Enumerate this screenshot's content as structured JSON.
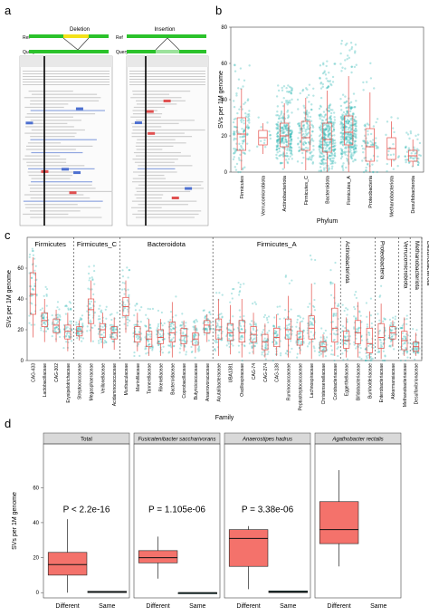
{
  "panel_labels": {
    "a": "a",
    "b": "b",
    "c": "c",
    "d": "d"
  },
  "panel_a": {
    "deletion_title": "Deletion",
    "insertion_title": "Insertion",
    "ref_label": "Ref",
    "query_label": "Query"
  },
  "colors": {
    "box_fill": "#f4726b",
    "box_stroke": "#e4504a",
    "point": "#30b8b4",
    "green_bar": "#2bc22b",
    "yellow_bar": "#f3e21a",
    "strip": "#d9d9d9",
    "dark_box": "#1f5c57"
  },
  "chart_data": [
    {
      "panel": "b",
      "type": "box+strip",
      "xlabel": "Phylum",
      "ylabel": "SVs per 1M genome",
      "ylim": [
        0,
        80
      ],
      "yticks": [
        0,
        20,
        40,
        60,
        80
      ],
      "categories": [
        "Firmicutes",
        "Verrucomicrobiota",
        "Actinobacteriota",
        "Firmicutes_C",
        "Bacteroidota",
        "Firmicutes_A",
        "Proteobacteria",
        "Methanobacteriota",
        "Desulfobacterota"
      ],
      "boxes": [
        {
          "q1": 12,
          "median": 21,
          "q3": 30,
          "lo": 1,
          "hi": 46
        },
        {
          "q1": 15,
          "median": 19,
          "q3": 23,
          "lo": 10,
          "hi": 27
        },
        {
          "q1": 14,
          "median": 20,
          "q3": 27,
          "lo": 2,
          "hi": 38
        },
        {
          "q1": 12,
          "median": 19,
          "q3": 28,
          "lo": 1,
          "hi": 41
        },
        {
          "q1": 11,
          "median": 18,
          "q3": 27,
          "lo": 0,
          "hi": 45
        },
        {
          "q1": 15,
          "median": 22,
          "q3": 31,
          "lo": 0,
          "hi": 53
        },
        {
          "q1": 6,
          "median": 14,
          "q3": 24,
          "lo": 0,
          "hi": 44
        },
        {
          "q1": 7,
          "median": 13,
          "q3": 19,
          "lo": 3,
          "hi": 28
        },
        {
          "q1": 6,
          "median": 9,
          "q3": 12,
          "lo": 3,
          "hi": 18
        }
      ],
      "point_density": [
        120,
        12,
        260,
        140,
        520,
        760,
        70,
        20,
        50
      ]
    },
    {
      "panel": "c",
      "type": "box+strip",
      "xlabel": "Family",
      "ylabel": "SVs per 1M genome",
      "ylim": [
        0,
        80
      ],
      "yticks": [
        0,
        20,
        40,
        60
      ],
      "groups": [
        "Firmicutes",
        "Firmicutes_C",
        "Bacteroidota",
        "Firmicutes_A",
        "Actinobacteriota",
        "Proteobacteria",
        "Verrucomicrobiota",
        "Methanobacteriota",
        "Desulfobacterota"
      ],
      "categories": [
        "CAG-433",
        "Lactobacillaceae",
        "CAG-302",
        "Erysipelotrichaceae",
        "Streptococcaceae",
        "Megasphaeraceae",
        "Veillonellaceae",
        "Acidaminococcaceae",
        "Muribaculaceae",
        "Marinifilaceae",
        "Tannerellaceae",
        "Rikenellaceae",
        "Bacteroidaceae",
        "Coprobacillaceae",
        "Butyricicoccaceae",
        "Anaerovoracaceae",
        "Acutalibacteraceae",
        "UBA1381",
        "Oscillospiraceae",
        "CAG-74",
        "CAG-274",
        "CAG-138",
        "Ruminococcaceae",
        "Peptostreptococcaceae",
        "Lachnospiraceae",
        "Christensenellaceae",
        "Coriobacteriaceae",
        "Eggerthellaceae",
        "Bifidobacteriaceae",
        "Burkholderiaceae",
        "Enterobacteriaceae",
        "Akkermansiaceae",
        "Methanobacteriaceae",
        "Desulfovibrionaceae"
      ],
      "boxes": [
        {
          "q1": 30,
          "median": 43,
          "q3": 57,
          "lo": 15,
          "hi": 67
        },
        {
          "q1": 22,
          "median": 26,
          "q3": 31,
          "lo": 12,
          "hi": 40
        },
        {
          "q1": 18,
          "median": 23,
          "q3": 27,
          "lo": 12,
          "hi": 33
        },
        {
          "q1": 14,
          "median": 19,
          "q3": 23,
          "lo": 6,
          "hi": 31
        },
        {
          "q1": 16,
          "median": 19,
          "q3": 22,
          "lo": 13,
          "hi": 26
        },
        {
          "q1": 24,
          "median": 33,
          "q3": 40,
          "lo": 12,
          "hi": 52
        },
        {
          "q1": 15,
          "median": 20,
          "q3": 24,
          "lo": 8,
          "hi": 31
        },
        {
          "q1": 14,
          "median": 18,
          "q3": 22,
          "lo": 7,
          "hi": 28
        },
        {
          "q1": 29,
          "median": 35,
          "q3": 41,
          "lo": 18,
          "hi": 52
        },
        {
          "q1": 12,
          "median": 17,
          "q3": 22,
          "lo": 6,
          "hi": 31
        },
        {
          "q1": 9,
          "median": 14,
          "q3": 19,
          "lo": 3,
          "hi": 27
        },
        {
          "q1": 11,
          "median": 15,
          "q3": 20,
          "lo": 3,
          "hi": 27
        },
        {
          "q1": 12,
          "median": 18,
          "q3": 25,
          "lo": 2,
          "hi": 38
        },
        {
          "q1": 11,
          "median": 16,
          "q3": 21,
          "lo": 6,
          "hi": 26
        },
        {
          "q1": 10,
          "median": 14,
          "q3": 18,
          "lo": 5,
          "hi": 23
        },
        {
          "q1": 18,
          "median": 23,
          "q3": 26,
          "lo": 12,
          "hi": 30
        },
        {
          "q1": 14,
          "median": 20,
          "q3": 27,
          "lo": 3,
          "hi": 40
        },
        {
          "q1": 13,
          "median": 18,
          "q3": 24,
          "lo": 4,
          "hi": 36
        },
        {
          "q1": 12,
          "median": 18,
          "q3": 26,
          "lo": 2,
          "hi": 40
        },
        {
          "q1": 12,
          "median": 17,
          "q3": 22,
          "lo": 4,
          "hi": 31
        },
        {
          "q1": 7,
          "median": 12,
          "q3": 17,
          "lo": 2,
          "hi": 24
        },
        {
          "q1": 9,
          "median": 15,
          "q3": 21,
          "lo": 3,
          "hi": 30
        },
        {
          "q1": 14,
          "median": 20,
          "q3": 27,
          "lo": 2,
          "hi": 42
        },
        {
          "q1": 10,
          "median": 14,
          "q3": 19,
          "lo": 4,
          "hi": 25
        },
        {
          "q1": 14,
          "median": 21,
          "q3": 29,
          "lo": 1,
          "hi": 50
        },
        {
          "q1": 6,
          "median": 9,
          "q3": 12,
          "lo": 2,
          "hi": 17
        },
        {
          "q1": 12,
          "median": 21,
          "q3": 34,
          "lo": 3,
          "hi": 50
        },
        {
          "q1": 8,
          "median": 13,
          "q3": 19,
          "lo": 2,
          "hi": 28
        },
        {
          "q1": 11,
          "median": 18,
          "q3": 26,
          "lo": 2,
          "hi": 38
        },
        {
          "q1": 5,
          "median": 11,
          "q3": 21,
          "lo": 1,
          "hi": 32
        },
        {
          "q1": 8,
          "median": 15,
          "q3": 24,
          "lo": 1,
          "hi": 37
        },
        {
          "q1": 14,
          "median": 18,
          "q3": 22,
          "lo": 9,
          "hi": 26
        },
        {
          "q1": 7,
          "median": 13,
          "q3": 19,
          "lo": 3,
          "hi": 28
        },
        {
          "q1": 6,
          "median": 9,
          "q3": 12,
          "lo": 3,
          "hi": 18
        }
      ]
    },
    {
      "panel": "d",
      "type": "box",
      "ylabel": "SVs per 1M genome",
      "ylim": [
        -3,
        85
      ],
      "yticks": [
        0,
        20,
        40,
        60
      ],
      "categories": [
        "Different",
        "Same"
      ],
      "facets": [
        {
          "title": "Total",
          "pvalue": "P < 2.2e-16",
          "different": {
            "q1": 10,
            "median": 16,
            "q3": 23,
            "lo": 0,
            "hi": 42
          },
          "same": {
            "q1": 0,
            "median": 0.3,
            "q3": 0.8,
            "lo": 0,
            "hi": 0.8
          }
        },
        {
          "title": "Fusicatenibacter saccharivorans",
          "pvalue": "P = 1.105e-06",
          "different": {
            "q1": 17,
            "median": 20,
            "q3": 24,
            "lo": 8,
            "hi": 32
          },
          "same": {
            "q1": 0,
            "median": 0,
            "q3": 0,
            "lo": 0,
            "hi": 0
          }
        },
        {
          "title": "Anaerostipes hadrus",
          "pvalue": "P = 3.38e-06",
          "different": {
            "q1": 15,
            "median": 31,
            "q3": 36,
            "lo": 2,
            "hi": 38
          },
          "same": {
            "q1": 0,
            "median": 0.4,
            "q3": 1,
            "lo": 0,
            "hi": 1
          }
        },
        {
          "title": "Agathobacter rectalis",
          "pvalue": "",
          "different": {
            "q1": 28,
            "median": 36,
            "q3": 52,
            "lo": 15,
            "hi": 70
          },
          "same": null
        }
      ]
    }
  ]
}
